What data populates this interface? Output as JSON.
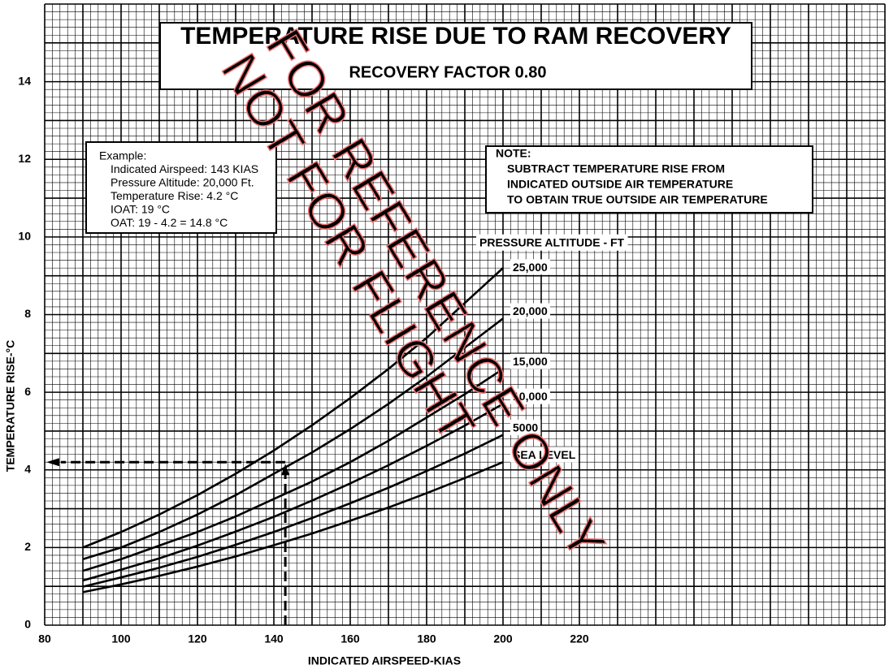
{
  "chart_data": {
    "type": "line",
    "title": "TEMPERATURE RISE DUE TO RAM RECOVERY",
    "subtitle": "RECOVERY FACTOR 0.80",
    "x_label": "INDICATED AIRSPEED-KIAS",
    "y_label": "TEMPERATURE RISE-°C",
    "legend_title": "PRESSURE ALTITUDE - FT",
    "x": [
      90,
      100,
      110,
      120,
      130,
      140,
      150,
      160,
      170,
      180,
      190,
      200
    ],
    "series": [
      {
        "name": "25,000",
        "color": "#000000",
        "values": [
          2.0,
          2.4,
          2.85,
          3.35,
          3.9,
          4.5,
          5.15,
          5.85,
          6.6,
          7.4,
          8.3,
          9.2
        ]
      },
      {
        "name": "20,000",
        "color": "#000000",
        "values": [
          1.7,
          2.0,
          2.4,
          2.85,
          3.35,
          3.9,
          4.45,
          5.05,
          5.7,
          6.4,
          7.15,
          7.9
        ]
      },
      {
        "name": "15,000",
        "color": "#000000",
        "values": [
          1.4,
          1.7,
          2.05,
          2.4,
          2.8,
          3.25,
          3.7,
          4.2,
          4.75,
          5.35,
          5.95,
          6.6
        ]
      },
      {
        "name": "10,000",
        "color": "#000000",
        "values": [
          1.15,
          1.43,
          1.72,
          2.05,
          2.41,
          2.79,
          3.21,
          3.65,
          4.12,
          4.62,
          5.14,
          5.7
        ]
      },
      {
        "name": "5000",
        "color": "#000000",
        "values": [
          0.99,
          1.23,
          1.48,
          1.76,
          2.07,
          2.4,
          2.76,
          3.14,
          3.54,
          3.97,
          4.42,
          4.9
        ]
      },
      {
        "name": "SEA LEVEL",
        "color": "#000000",
        "values": [
          0.85,
          1.05,
          1.27,
          1.51,
          1.77,
          2.06,
          2.36,
          2.69,
          3.03,
          3.4,
          3.79,
          4.2
        ]
      }
    ],
    "xlim": [
      80,
      300
    ],
    "ylim": [
      0,
      16
    ],
    "xticks": [
      80,
      100,
      120,
      140,
      160,
      180,
      200,
      220
    ],
    "yticks": [
      0,
      2,
      4,
      6,
      8,
      10,
      12,
      14
    ],
    "grid": {
      "major": [
        10,
        1
      ],
      "minor": [
        2,
        0.2
      ]
    },
    "example_point": {
      "x": 143,
      "y": 4.2
    },
    "example_box": [
      "Example:",
      "Indicated Airspeed: 143 KIAS",
      "Pressure Altitude: 20,000 Ft.",
      "Temperature Rise: 4.2 °C",
      "IOAT: 19 °C",
      "OAT: 19 - 4.2 = 14.8 °C"
    ],
    "note_box": [
      "NOTE:",
      "SUBTRACT TEMPERATURE RISE FROM",
      "INDICATED OUTSIDE AIR TEMPERATURE",
      "TO OBTAIN TRUE OUTSIDE AIR TEMPERATURE"
    ],
    "watermark": [
      "FOR REFERENCE ONLY",
      "NOT FOR FLIGHT"
    ]
  }
}
